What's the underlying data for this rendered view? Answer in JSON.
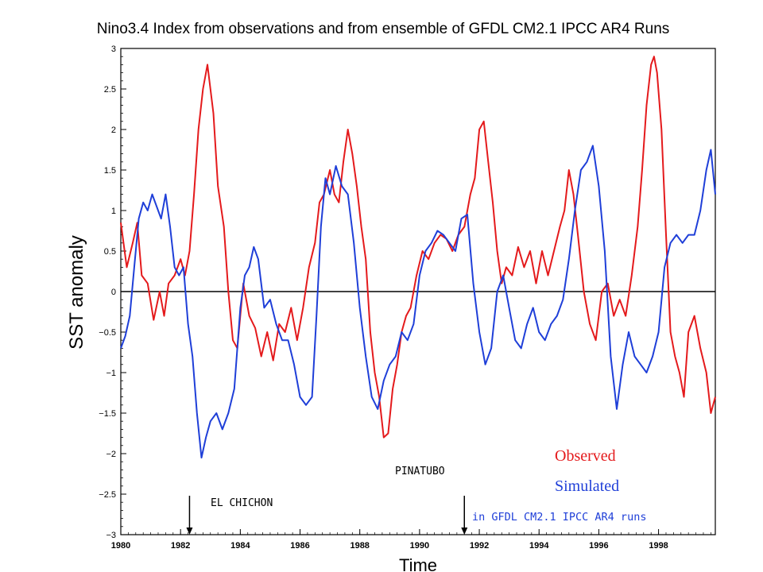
{
  "chart_data": {
    "type": "line",
    "title": "Nino3.4 Index from observations and from ensemble of GFDL CM2.1 IPCC AR4 Runs",
    "xlabel": "Time",
    "ylabel": "SST anomaly",
    "xlim": [
      1980,
      1999.9
    ],
    "ylim": [
      -3,
      3
    ],
    "xticks": [
      "1980",
      "1982",
      "1984",
      "1986",
      "1988",
      "1990",
      "1992",
      "1994",
      "1996",
      "1998"
    ],
    "yticks": [
      "3",
      "2.5",
      "2",
      "1.5",
      "1",
      "0.5",
      "0",
      "−0.5",
      "−1",
      "−1.5",
      "−2",
      "−2.5",
      "−3"
    ],
    "zero_line": true,
    "series": [
      {
        "name": "Observed",
        "color": "#e41a1c",
        "x": [
          1980.0,
          1980.2,
          1980.4,
          1980.55,
          1980.7,
          1980.9,
          1981.1,
          1981.3,
          1981.45,
          1981.6,
          1981.8,
          1982.0,
          1982.15,
          1982.3,
          1982.45,
          1982.6,
          1982.75,
          1982.9,
          1983.1,
          1983.25,
          1983.45,
          1983.6,
          1983.75,
          1983.9,
          1984.1,
          1984.3,
          1984.5,
          1984.7,
          1984.9,
          1985.1,
          1985.3,
          1985.5,
          1985.7,
          1985.9,
          1986.1,
          1986.3,
          1986.5,
          1986.65,
          1986.8,
          1987.0,
          1987.15,
          1987.3,
          1987.45,
          1987.6,
          1987.75,
          1987.9,
          1988.05,
          1988.2,
          1988.35,
          1988.5,
          1988.65,
          1988.8,
          1988.95,
          1989.1,
          1989.25,
          1989.4,
          1989.55,
          1989.7,
          1989.9,
          1990.1,
          1990.3,
          1990.5,
          1990.7,
          1990.9,
          1991.1,
          1991.3,
          1991.5,
          1991.7,
          1991.85,
          1992.0,
          1992.15,
          1992.3,
          1992.45,
          1992.6,
          1992.75,
          1992.9,
          1993.1,
          1993.3,
          1993.5,
          1993.7,
          1993.9,
          1994.1,
          1994.3,
          1994.5,
          1994.7,
          1994.85,
          1995.0,
          1995.15,
          1995.3,
          1995.5,
          1995.7,
          1995.9,
          1996.1,
          1996.3,
          1996.5,
          1996.7,
          1996.9,
          1997.1,
          1997.3,
          1997.45,
          1997.6,
          1997.75,
          1997.85,
          1997.95,
          1998.1,
          1998.25,
          1998.4,
          1998.55,
          1998.7,
          1998.85,
          1999.0,
          1999.2,
          1999.4,
          1999.6,
          1999.75,
          1999.9
        ],
        "values": [
          0.85,
          0.3,
          0.6,
          0.85,
          0.2,
          0.1,
          -0.35,
          0.0,
          -0.3,
          0.1,
          0.2,
          0.4,
          0.2,
          0.5,
          1.2,
          2.0,
          2.5,
          2.8,
          2.2,
          1.3,
          0.8,
          0.0,
          -0.6,
          -0.7,
          0.1,
          -0.3,
          -0.45,
          -0.8,
          -0.5,
          -0.85,
          -0.4,
          -0.5,
          -0.2,
          -0.6,
          -0.2,
          0.3,
          0.6,
          1.1,
          1.2,
          1.5,
          1.2,
          1.1,
          1.6,
          2.0,
          1.7,
          1.3,
          0.8,
          0.4,
          -0.5,
          -1.0,
          -1.3,
          -1.8,
          -1.75,
          -1.2,
          -0.9,
          -0.5,
          -0.3,
          -0.2,
          0.2,
          0.5,
          0.4,
          0.6,
          0.7,
          0.65,
          0.5,
          0.7,
          0.8,
          1.2,
          1.4,
          2.0,
          2.1,
          1.6,
          1.1,
          0.5,
          0.1,
          0.3,
          0.2,
          0.55,
          0.3,
          0.5,
          0.1,
          0.5,
          0.2,
          0.5,
          0.8,
          1.0,
          1.5,
          1.2,
          0.7,
          0.0,
          -0.4,
          -0.6,
          0.0,
          0.1,
          -0.3,
          -0.1,
          -0.3,
          0.2,
          0.8,
          1.5,
          2.3,
          2.8,
          2.9,
          2.7,
          2.0,
          0.7,
          -0.5,
          -0.8,
          -1.0,
          -1.3,
          -0.5,
          -0.3,
          -0.7,
          -1.0,
          -1.5,
          -1.3
        ]
      },
      {
        "name": "Simulated",
        "color": "#1f3fd8",
        "x": [
          1980.0,
          1980.15,
          1980.3,
          1980.45,
          1980.6,
          1980.75,
          1980.9,
          1981.05,
          1981.2,
          1981.35,
          1981.5,
          1981.65,
          1981.8,
          1981.95,
          1982.1,
          1982.25,
          1982.4,
          1982.55,
          1982.7,
          1982.85,
          1983.0,
          1983.2,
          1983.4,
          1983.6,
          1983.8,
          1984.0,
          1984.15,
          1984.3,
          1984.45,
          1984.6,
          1984.8,
          1985.0,
          1985.2,
          1985.4,
          1985.6,
          1985.8,
          1986.0,
          1986.2,
          1986.4,
          1986.55,
          1986.7,
          1986.85,
          1987.0,
          1987.2,
          1987.4,
          1987.6,
          1987.8,
          1988.0,
          1988.2,
          1988.4,
          1988.6,
          1988.8,
          1989.0,
          1989.2,
          1989.4,
          1989.6,
          1989.8,
          1990.0,
          1990.2,
          1990.4,
          1990.6,
          1990.8,
          1991.0,
          1991.2,
          1991.4,
          1991.6,
          1991.8,
          1992.0,
          1992.2,
          1992.4,
          1992.6,
          1992.8,
          1993.0,
          1993.2,
          1993.4,
          1993.6,
          1993.8,
          1994.0,
          1994.2,
          1994.4,
          1994.6,
          1994.8,
          1995.0,
          1995.2,
          1995.4,
          1995.6,
          1995.8,
          1996.0,
          1996.2,
          1996.4,
          1996.6,
          1996.8,
          1997.0,
          1997.2,
          1997.4,
          1997.6,
          1997.8,
          1998.0,
          1998.2,
          1998.4,
          1998.6,
          1998.8,
          1999.0,
          1999.2,
          1999.4,
          1999.6,
          1999.75,
          1999.9
        ],
        "values": [
          -0.7,
          -0.55,
          -0.3,
          0.3,
          0.9,
          1.1,
          1.0,
          1.2,
          1.05,
          0.9,
          1.2,
          0.8,
          0.3,
          0.2,
          0.3,
          -0.4,
          -0.8,
          -1.5,
          -2.05,
          -1.8,
          -1.6,
          -1.5,
          -1.7,
          -1.5,
          -1.2,
          -0.2,
          0.2,
          0.3,
          0.55,
          0.4,
          -0.2,
          -0.1,
          -0.4,
          -0.6,
          -0.6,
          -0.9,
          -1.3,
          -1.4,
          -1.3,
          -0.3,
          0.8,
          1.4,
          1.2,
          1.55,
          1.3,
          1.2,
          0.6,
          -0.2,
          -0.8,
          -1.3,
          -1.45,
          -1.1,
          -0.9,
          -0.8,
          -0.5,
          -0.6,
          -0.4,
          0.2,
          0.5,
          0.6,
          0.75,
          0.7,
          0.6,
          0.5,
          0.9,
          0.95,
          0.1,
          -0.5,
          -0.9,
          -0.7,
          0.0,
          0.2,
          -0.2,
          -0.6,
          -0.7,
          -0.4,
          -0.2,
          -0.5,
          -0.6,
          -0.4,
          -0.3,
          -0.1,
          0.4,
          1.0,
          1.5,
          1.6,
          1.8,
          1.3,
          0.5,
          -0.8,
          -1.45,
          -0.9,
          -0.5,
          -0.8,
          -0.9,
          -1.0,
          -0.8,
          -0.5,
          0.3,
          0.6,
          0.7,
          0.6,
          0.7,
          0.7,
          1.0,
          1.5,
          1.75,
          1.2
        ]
      }
    ],
    "annotations": [
      {
        "text": "EL CHICHON",
        "x": 1982.3
      },
      {
        "text": "PINATUBO",
        "x": 1991.5
      }
    ],
    "legend": {
      "observed_label": "Observed",
      "simulated_label": "Simulated",
      "runs_label": "in GFDL CM2.1 IPCC AR4 runs",
      "placement": "bottom-right"
    }
  }
}
